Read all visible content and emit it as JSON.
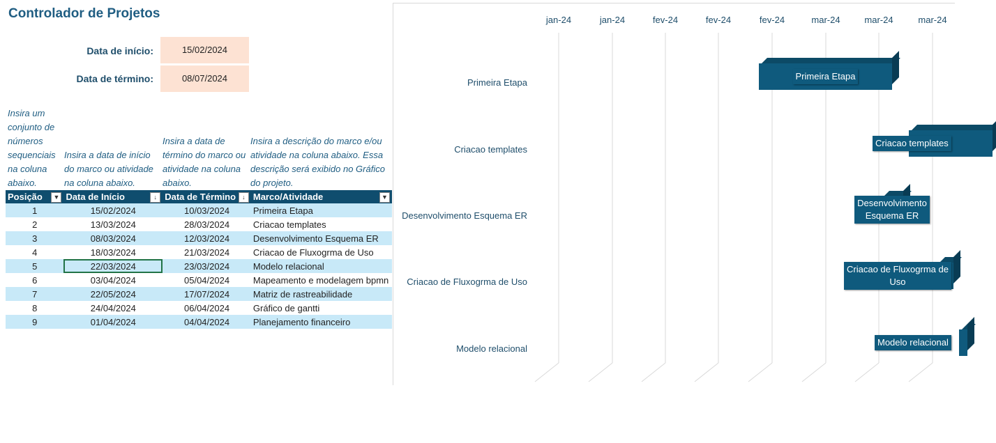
{
  "title": "Controlador de Projetos",
  "start_label": "Data de início:",
  "start_value": "15/02/2024",
  "end_label": "Data de término:",
  "end_value": "08/07/2024",
  "instructions": {
    "col1": "Insira um conjunto de números sequenciais na coluna abaixo.",
    "col2": "Insira a data de início do marco ou atividade na coluna abaixo.",
    "col3": "Insira a data de término do marco ou atividade na coluna abaixo.",
    "col4": "Insira a descrição do marco e/ou atividade na coluna abaixo. Essa descrição será exibido no Gráfico do projeto."
  },
  "table": {
    "headers": [
      "Posição",
      "Data de Início",
      "Data de Término",
      "Marco/Atividade"
    ],
    "rows": [
      [
        "1",
        "15/02/2024",
        "10/03/2024",
        "Primeira Etapa"
      ],
      [
        "2",
        "13/03/2024",
        "28/03/2024",
        "Criacao templates"
      ],
      [
        "3",
        "08/03/2024",
        "12/03/2024",
        "Desenvolvimento Esquema ER"
      ],
      [
        "4",
        "18/03/2024",
        "21/03/2024",
        "Criacao de Fluxogrma de Uso"
      ],
      [
        "5",
        "22/03/2024",
        "23/03/2024",
        "Modelo relacional"
      ],
      [
        "6",
        "03/04/2024",
        "05/04/2024",
        "Mapeamento e modelagem bpmn"
      ],
      [
        "7",
        "22/05/2024",
        "17/07/2024",
        "Matriz de rastreabilidade"
      ],
      [
        "8",
        "24/04/2024",
        "06/04/2024",
        "Gráfico de gantti"
      ],
      [
        "9",
        "01/04/2024",
        "04/04/2024",
        "Planejamento financeiro"
      ]
    ]
  },
  "chart_data": {
    "type": "bar",
    "tick_labels": [
      "jan-24",
      "jan-24",
      "fev-24",
      "fev-24",
      "fev-24",
      "mar-24",
      "mar-24",
      "mar-24"
    ],
    "categories": [
      "Primeira Etapa",
      "Criacao templates",
      "Desenvolvimento Esquema ER",
      "Criacao de Fluxogrma de Uso",
      "Modelo relacional"
    ],
    "bar_labels": [
      "Primeira Etapa",
      "Criacao templates",
      "Desenvolvimento\nEsquema ER",
      "Criacao de Fluxogrma de\nUso",
      "Modelo relacional"
    ],
    "start": [
      "2024-02-15",
      "2024-03-13",
      "2024-03-08",
      "2024-03-18",
      "2024-03-22"
    ],
    "end": [
      "2024-03-10",
      "2024-03-28",
      "2024-03-12",
      "2024-03-21",
      "2024-03-23"
    ],
    "bar_color": "#0f5a7d"
  }
}
